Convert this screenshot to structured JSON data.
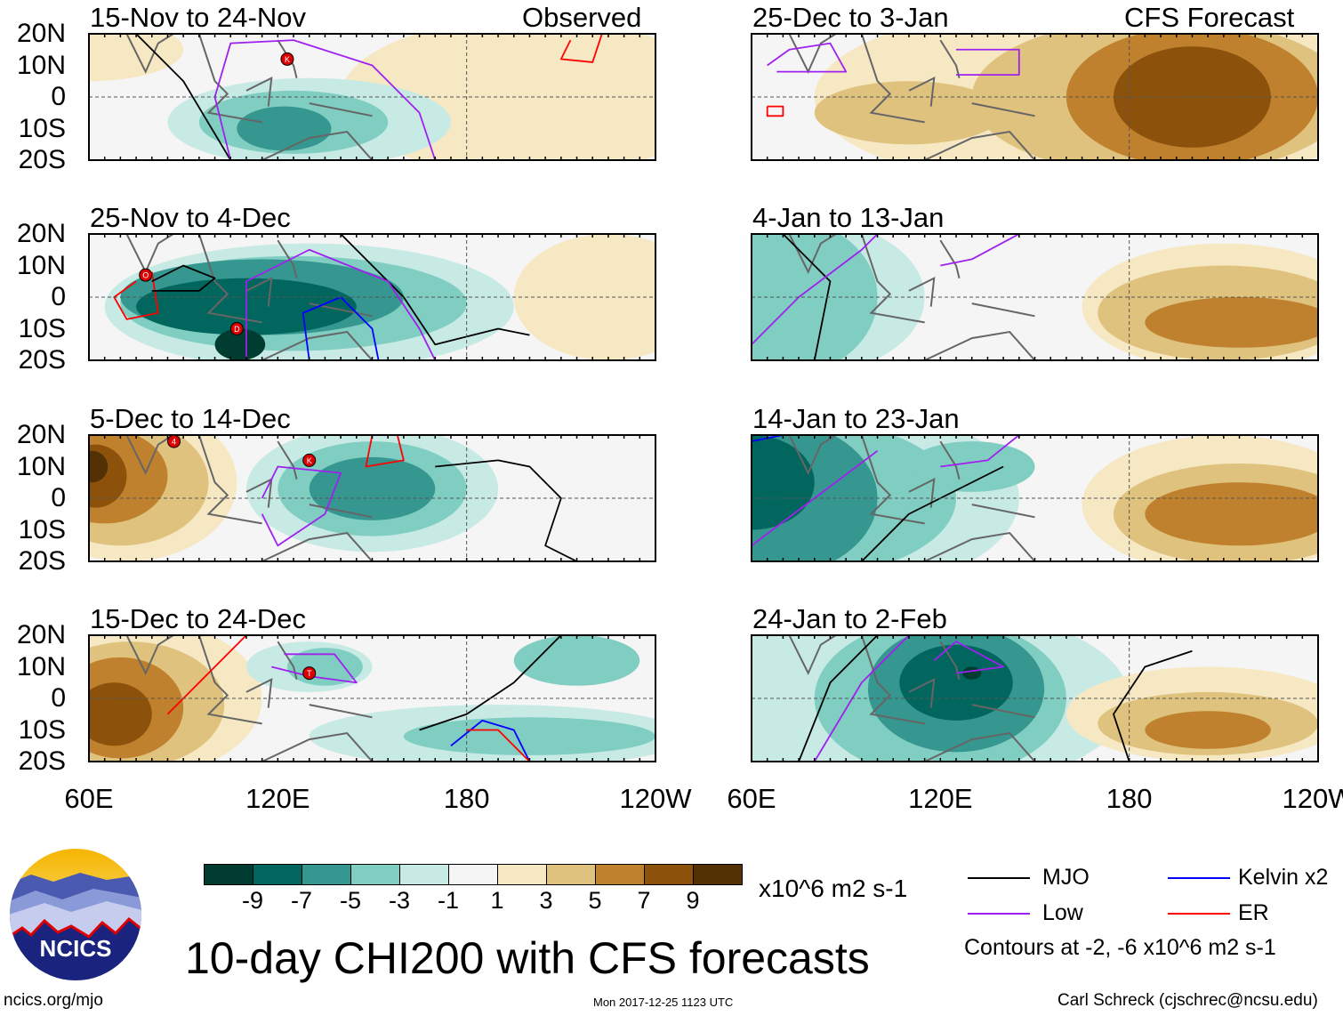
{
  "header": {
    "observed_label": "Observed",
    "forecast_label": "CFS Forecast"
  },
  "panels_left": [
    {
      "title": "15-Nov to 24-Nov",
      "storms": [
        "K"
      ]
    },
    {
      "title": "25-Nov to 4-Dec",
      "storms": [
        "O",
        "D"
      ]
    },
    {
      "title": "5-Dec to 14-Dec",
      "storms": [
        "4",
        "K"
      ]
    },
    {
      "title": "15-Dec to 24-Dec",
      "storms": [
        "T"
      ]
    }
  ],
  "panels_right": [
    {
      "title": "25-Dec to 3-Jan"
    },
    {
      "title": "4-Jan to 13-Jan"
    },
    {
      "title": "14-Jan to 23-Jan"
    },
    {
      "title": "24-Jan to 2-Feb"
    }
  ],
  "lat_labels": [
    "20N",
    "10N",
    "0",
    "10S",
    "20S"
  ],
  "lon_labels": [
    "60E",
    "120E",
    "180",
    "120W"
  ],
  "colorbar": {
    "colors": [
      "#003c30",
      "#01665e",
      "#35978f",
      "#80cdc1",
      "#c7eae5",
      "#f5f5f5",
      "#f6e8c3",
      "#dfc27d",
      "#bf812d",
      "#8c510a",
      "#543005"
    ],
    "labels": [
      "-9",
      "-7",
      "-5",
      "-3",
      "-1",
      "1",
      "3",
      "5",
      "7",
      "9"
    ],
    "units": "x10^6 m2 s-1"
  },
  "legend": {
    "items": [
      {
        "label": "MJO",
        "color": "#000000"
      },
      {
        "label": "Kelvin x2",
        "color": "#0000ff"
      },
      {
        "label": "Low",
        "color": "#a020f0"
      },
      {
        "label": "ER",
        "color": "#ff0000"
      }
    ],
    "contours_note": "Contours at -2, -6 x10^6 m2 s-1"
  },
  "main_title": "10-day CHI200 with CFS forecasts",
  "logo": {
    "text": "NCICS"
  },
  "footer": {
    "url": "ncics.org/mjo",
    "timestamp": "Mon 2017-12-25 1123 UTC",
    "credit": "Carl Schreck (cjschrec@ncsu.edu)"
  }
}
